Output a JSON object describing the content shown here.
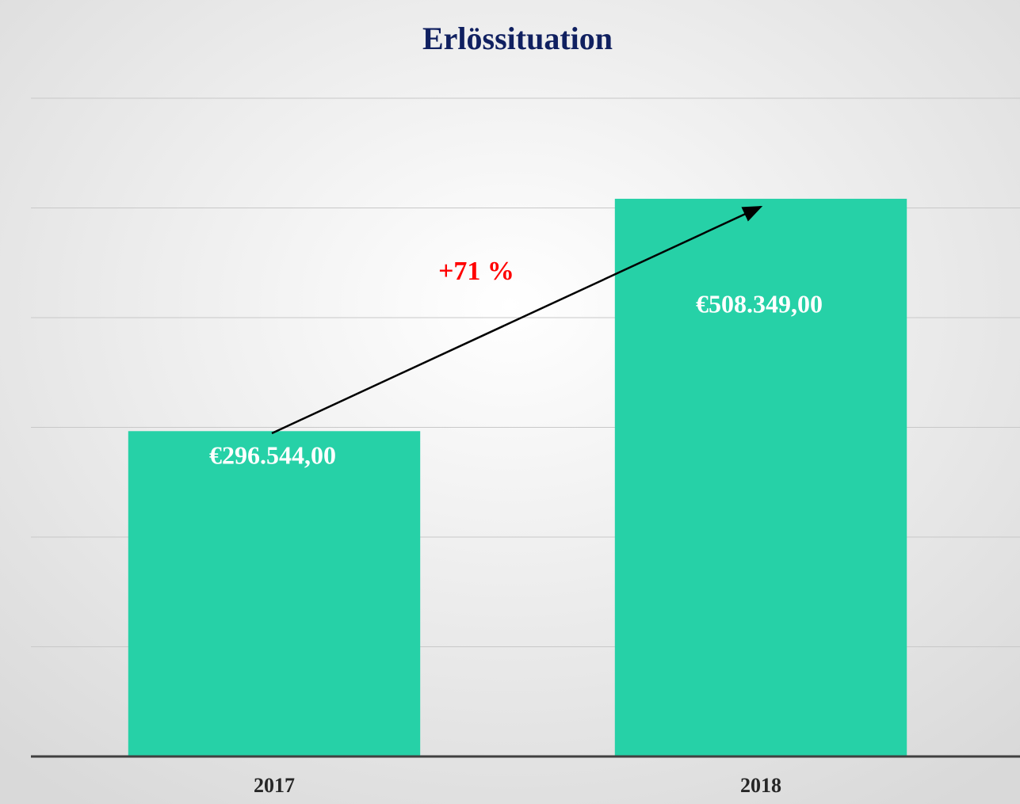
{
  "chart_data": {
    "type": "bar",
    "title": "Erlössituation",
    "categories": [
      "2017",
      "2018"
    ],
    "values": [
      296544,
      508349
    ],
    "value_labels": [
      "€296.544,00",
      "€508.349,00"
    ],
    "color": "#26d1a7",
    "ylim": [
      0,
      600000
    ],
    "yticks": [
      0,
      100000,
      200000,
      300000,
      400000,
      500000,
      600000
    ],
    "grid": true,
    "annotation": "+71 %"
  }
}
